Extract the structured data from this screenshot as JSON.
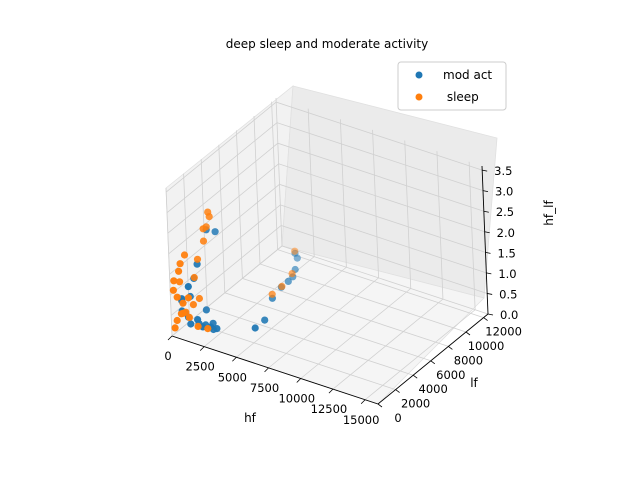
{
  "chart_data": {
    "type": "scatter",
    "title": "deep sleep and moderate activity",
    "xlabel": "hf",
    "ylabel": "lf",
    "zlabel": "hf_lf",
    "xticks": [
      "0",
      "2500",
      "5000",
      "7500",
      "10000",
      "12500",
      "15000"
    ],
    "yticks": [
      "0",
      "2000",
      "4000",
      "6000",
      "8000",
      "10000",
      "12000"
    ],
    "zticks": [
      "0.0",
      "0.5",
      "1.0",
      "1.5",
      "2.0",
      "2.5",
      "3.0",
      "3.5"
    ],
    "xlim": [
      0,
      16000
    ],
    "ylim": [
      0,
      12500
    ],
    "zlim": [
      0,
      3.6
    ],
    "grid": true,
    "legend": "top-right",
    "series": [
      {
        "name": "mod act",
        "color": "#1f77b4",
        "points": [
          [
            1500,
            11800,
            0.1
          ],
          [
            2100,
            11200,
            0.15
          ],
          [
            2900,
            9800,
            0.2
          ],
          [
            3400,
            8800,
            0.25
          ],
          [
            3600,
            8000,
            0.3
          ],
          [
            3900,
            6800,
            0.4
          ],
          [
            4300,
            5200,
            0.45
          ],
          [
            5200,
            3000,
            0.4
          ],
          [
            5500,
            1500,
            0.5
          ],
          [
            600,
            3400,
            2.05
          ],
          [
            650,
            4300,
            1.85
          ],
          [
            900,
            1400,
            1.25
          ],
          [
            700,
            2100,
            1.45
          ],
          [
            1300,
            200,
            1.3
          ],
          [
            600,
            400,
            0.9
          ],
          [
            900,
            300,
            0.6
          ],
          [
            450,
            600,
            0.8
          ],
          [
            1600,
            650,
            0.45
          ],
          [
            2100,
            500,
            0.35
          ],
          [
            2400,
            950,
            0.3
          ],
          [
            2700,
            1200,
            0.25
          ],
          [
            800,
            1000,
            0.2
          ],
          [
            1100,
            1500,
            0.15
          ],
          [
            1400,
            1800,
            0.1
          ],
          [
            500,
            1200,
            0.3
          ],
          [
            1700,
            2200,
            0.1
          ],
          [
            2000,
            1800,
            0.05
          ],
          [
            300,
            800,
            0.5
          ],
          [
            350,
            1700,
            0.7
          ],
          [
            1000,
            2500,
            0.3
          ]
        ]
      },
      {
        "name": " sleep",
        "color": "#ff7f0e",
        "points": [
          [
            1200,
            12200,
            0.05
          ],
          [
            3300,
            7700,
            0.2
          ],
          [
            3000,
            9300,
            0.2
          ],
          [
            3300,
            6600,
            0.2
          ],
          [
            200,
            4200,
            2.3
          ],
          [
            250,
            3900,
            2.0
          ],
          [
            500,
            3200,
            2.1
          ],
          [
            450,
            4000,
            2.25
          ],
          [
            100,
            1600,
            1.7
          ],
          [
            150,
            1000,
            1.6
          ],
          [
            200,
            800,
            1.2
          ],
          [
            100,
            300,
            1.3
          ],
          [
            300,
            600,
            1.5
          ],
          [
            150,
            150,
            1.1
          ],
          [
            250,
            400,
            0.9
          ],
          [
            400,
            800,
            0.7
          ],
          [
            600,
            300,
            0.55
          ],
          [
            1200,
            300,
            1.0
          ],
          [
            800,
            200,
            0.6
          ],
          [
            1000,
            600,
            0.45
          ],
          [
            1800,
            400,
            0.35
          ],
          [
            2200,
            900,
            0.25
          ],
          [
            100,
            500,
            0.3
          ],
          [
            200,
            100,
            0.2
          ],
          [
            300,
            1200,
            0.4
          ],
          [
            500,
            1800,
            0.5
          ],
          [
            700,
            2200,
            0.6
          ],
          [
            150,
            2500,
            1.0
          ],
          [
            250,
            2800,
            1.4
          ],
          [
            350,
            3400,
            1.75
          ]
        ]
      }
    ]
  }
}
